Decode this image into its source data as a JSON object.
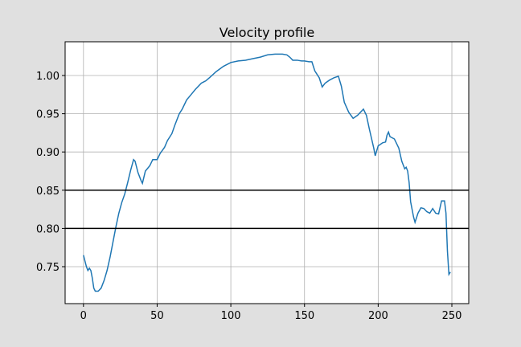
{
  "chart_data": {
    "type": "line",
    "title": "Velocity profile",
    "x": [
      0,
      2,
      3,
      4,
      5,
      6,
      7,
      8,
      10,
      12,
      14,
      16,
      18,
      20,
      22,
      24,
      26,
      28,
      30,
      32,
      34,
      35,
      37,
      39,
      40,
      42,
      45,
      47,
      50,
      52,
      55,
      57,
      60,
      62,
      65,
      67,
      70,
      73,
      76,
      80,
      83,
      86,
      90,
      95,
      100,
      105,
      110,
      115,
      120,
      125,
      130,
      135,
      138,
      140,
      142,
      145,
      148,
      150,
      153,
      155,
      157,
      160,
      162,
      164,
      167,
      170,
      173,
      175,
      177,
      180,
      183,
      186,
      188,
      190,
      192,
      194,
      197,
      198,
      200,
      203,
      205,
      206,
      207,
      208,
      211,
      214,
      216,
      218,
      219,
      220,
      221,
      222,
      224,
      225,
      227,
      229,
      231,
      233,
      235,
      237,
      239,
      241,
      243,
      245,
      246,
      247,
      248,
      249
    ],
    "series": [
      {
        "color": "#1f77b4",
        "values": [
          0.765,
          0.75,
          0.745,
          0.748,
          0.745,
          0.735,
          0.722,
          0.718,
          0.718,
          0.722,
          0.732,
          0.745,
          0.762,
          0.782,
          0.802,
          0.82,
          0.834,
          0.845,
          0.86,
          0.876,
          0.89,
          0.888,
          0.873,
          0.863,
          0.859,
          0.875,
          0.882,
          0.89,
          0.89,
          0.898,
          0.906,
          0.915,
          0.924,
          0.935,
          0.95,
          0.956,
          0.968,
          0.975,
          0.982,
          0.99,
          0.993,
          0.998,
          1.005,
          1.012,
          1.017,
          1.019,
          1.02,
          1.022,
          1.024,
          1.027,
          1.028,
          1.028,
          1.027,
          1.024,
          1.02,
          1.02,
          1.019,
          1.019,
          1.018,
          1.018,
          1.006,
          0.997,
          0.985,
          0.99,
          0.994,
          0.997,
          0.999,
          0.986,
          0.965,
          0.952,
          0.944,
          0.948,
          0.952,
          0.956,
          0.948,
          0.93,
          0.905,
          0.895,
          0.908,
          0.912,
          0.913,
          0.922,
          0.926,
          0.92,
          0.917,
          0.905,
          0.888,
          0.878,
          0.88,
          0.875,
          0.86,
          0.835,
          0.815,
          0.808,
          0.82,
          0.827,
          0.826,
          0.822,
          0.82,
          0.826,
          0.82,
          0.819,
          0.836,
          0.836,
          0.82,
          0.77,
          0.74,
          0.743
        ]
      }
    ],
    "hlines": [
      0.85,
      0.8
    ],
    "hline_color": "#000000",
    "xlim": [
      -12.45,
      261.45
    ],
    "xticks": [
      0,
      50,
      100,
      150,
      200,
      250
    ],
    "ylim": [
      0.7017,
      1.0441
    ],
    "yticks": [
      0.75,
      {
        "value": 0.8,
        "label": "0.80"
      },
      0.85,
      {
        "value": 0.9,
        "label": "0.90"
      },
      0.95,
      {
        "value": 1,
        "label": "1.00"
      }
    ],
    "grid": true
  }
}
